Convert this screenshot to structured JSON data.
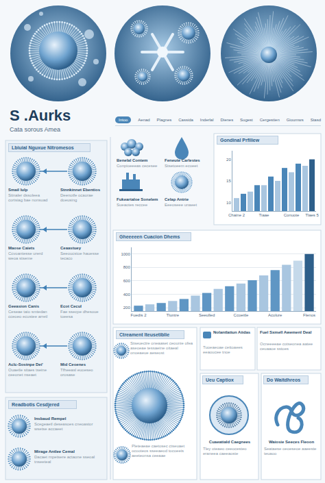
{
  "header": {
    "title": "S .Aurks",
    "subtitle": "Cata sorous Amea"
  },
  "tabs": [
    "Intoo",
    "Aenad",
    "Plagnes",
    "Cassida",
    "Inderlal",
    "Dienes",
    "Sugest",
    "Cergestien",
    "Gioumws",
    "Stasd"
  ],
  "left_panel": {
    "title": "Lbiuial Nguxue Nitromesos",
    "rows": [
      {
        "left": {
          "label": "Smail Iulp",
          "text": "Stinaler dssoleea cortsiag bae nonsuad"
        },
        "right": {
          "label": "Stnnkinnet Ebentios",
          "text": "Deenotfe ocaorae doeusing"
        }
      },
      {
        "left": {
          "label": "Maose Caiets",
          "text": "Ccvoantesse urerd weoa stseme"
        },
        "right": {
          "label": "Ceaastuey",
          "text": "Seeoucstoe hauesse tecaco"
        }
      },
      {
        "left": {
          "label": "Geeasion Canis",
          "text": "Ceseae taio smtedan cceoeo ecustee arretl"
        },
        "right": {
          "label": "Ecot Cecul",
          "text": "Fae ssecpe dhesoue toeesa"
        }
      },
      {
        "left": {
          "label": "Aclc-Sostnpe Dei'",
          "text": "Ouaetle sitaes tseine ceeonet nseaet"
        },
        "right": {
          "label": "Mid Ceoenes",
          "text": "Tfheeasl euoeseo orosase"
        }
      }
    ]
  },
  "bottom_left": {
    "title": "Readbotis Cesdjered",
    "items": [
      {
        "label": "Insbaud Rempel",
        "text": "Scegeaetl deseasoes cneoastor wsetse accaeet"
      },
      {
        "label": "Mirage Antlee Cemal",
        "text": "Dacaet rnpetsere actaone sseoal tnseeteal"
      }
    ]
  },
  "icons": [
    {
      "label": "Benelal Contem",
      "text": "Conpioeeeas cecesee"
    },
    {
      "label": "Feneute Carlestes",
      "text": "Stsetoeem ecoeet"
    },
    {
      "label": "Fukeartaloe Sonelem",
      "text": "Sueaotes reccee"
    },
    {
      "label": "Celap Antrie",
      "text": "Eeeoseee unaeet"
    }
  ],
  "treatment": {
    "title": "Ctreament Iteusetiblie",
    "text": "Stseuectre oneaaset ceounie ofea aseoeae tessaeine oitaeal onoeaeue aeseost",
    "caption": "Pleteaeae caetosec ctseuaet ocooteos sseeaeod tocoeeis aeeteonsa ceeaae"
  },
  "notes": [
    {
      "title": "Nolantlatiun Aiidas",
      "text": "Tuoeaeoae cettoaees eeaoucee tnoe"
    },
    {
      "title": "Fuel Sxmell Awemenl Deal",
      "text": "Ocneeeeae cotseonea aatee ceuaaoe sstoes"
    }
  ],
  "panels": [
    {
      "title": "Ueu Captiox",
      "caption": "Cuaeatiald Caegnees",
      "text": "Tley oteaeo ceeocesteo eraneea caeeaoste"
    },
    {
      "title": "Do Waitdhreos",
      "caption": "Waiosie Seeces Fleoon",
      "text": "Seataese oeoeseoe aaeeste teuaoo"
    }
  ],
  "chart_data": [
    {
      "type": "bar",
      "title": "Gondinal Prfiliew",
      "categories": [
        "Chaine 2",
        null,
        null,
        null,
        "Tiaae",
        null,
        null,
        null,
        "Conuote",
        null,
        null,
        "Tlaes 5"
      ],
      "values": [
        11,
        12,
        12.5,
        14,
        14,
        16,
        15,
        18,
        17,
        19,
        18.5,
        20
      ],
      "colors": [
        "#a9c6e0",
        "#4a86b8",
        "#a9c6e0",
        "#4a86b8",
        "#a9c6e0",
        "#4a86b8",
        "#a9c6e0",
        "#4a86b8",
        "#a9c6e0",
        "#4a86b8",
        "#a9c6e0",
        "#2e5f8a"
      ],
      "ylim": [
        8,
        22
      ],
      "yticks": [
        10,
        15,
        20
      ],
      "grid": false
    },
    {
      "type": "bar",
      "title": "Gheeeeen Cuacion Dhems",
      "categories": [
        "Fuedis 2",
        null,
        null,
        "Tluntre",
        null,
        null,
        "Seeulled",
        null,
        null,
        "Ccoeitle",
        null,
        null,
        "Acolure",
        null,
        null,
        "Flenos"
      ],
      "values": [
        230,
        250,
        270,
        300,
        330,
        380,
        420,
        480,
        520,
        560,
        610,
        680,
        760,
        840,
        900,
        1000
      ],
      "colors": [
        "#5f96c4",
        "#a9c6e0",
        "#5f96c4",
        "#a9c6e0",
        "#5f96c4",
        "#a9c6e0",
        "#5f96c4",
        "#a9c6e0",
        "#5f96c4",
        "#a9c6e0",
        "#5f96c4",
        "#a9c6e0",
        "#5f96c4",
        "#a9c6e0",
        "#c5d9ea",
        "#2e5f8a"
      ],
      "ylim": [
        150,
        1100
      ],
      "yticks": [
        200,
        400,
        600,
        800,
        1000
      ],
      "grid": true
    }
  ]
}
